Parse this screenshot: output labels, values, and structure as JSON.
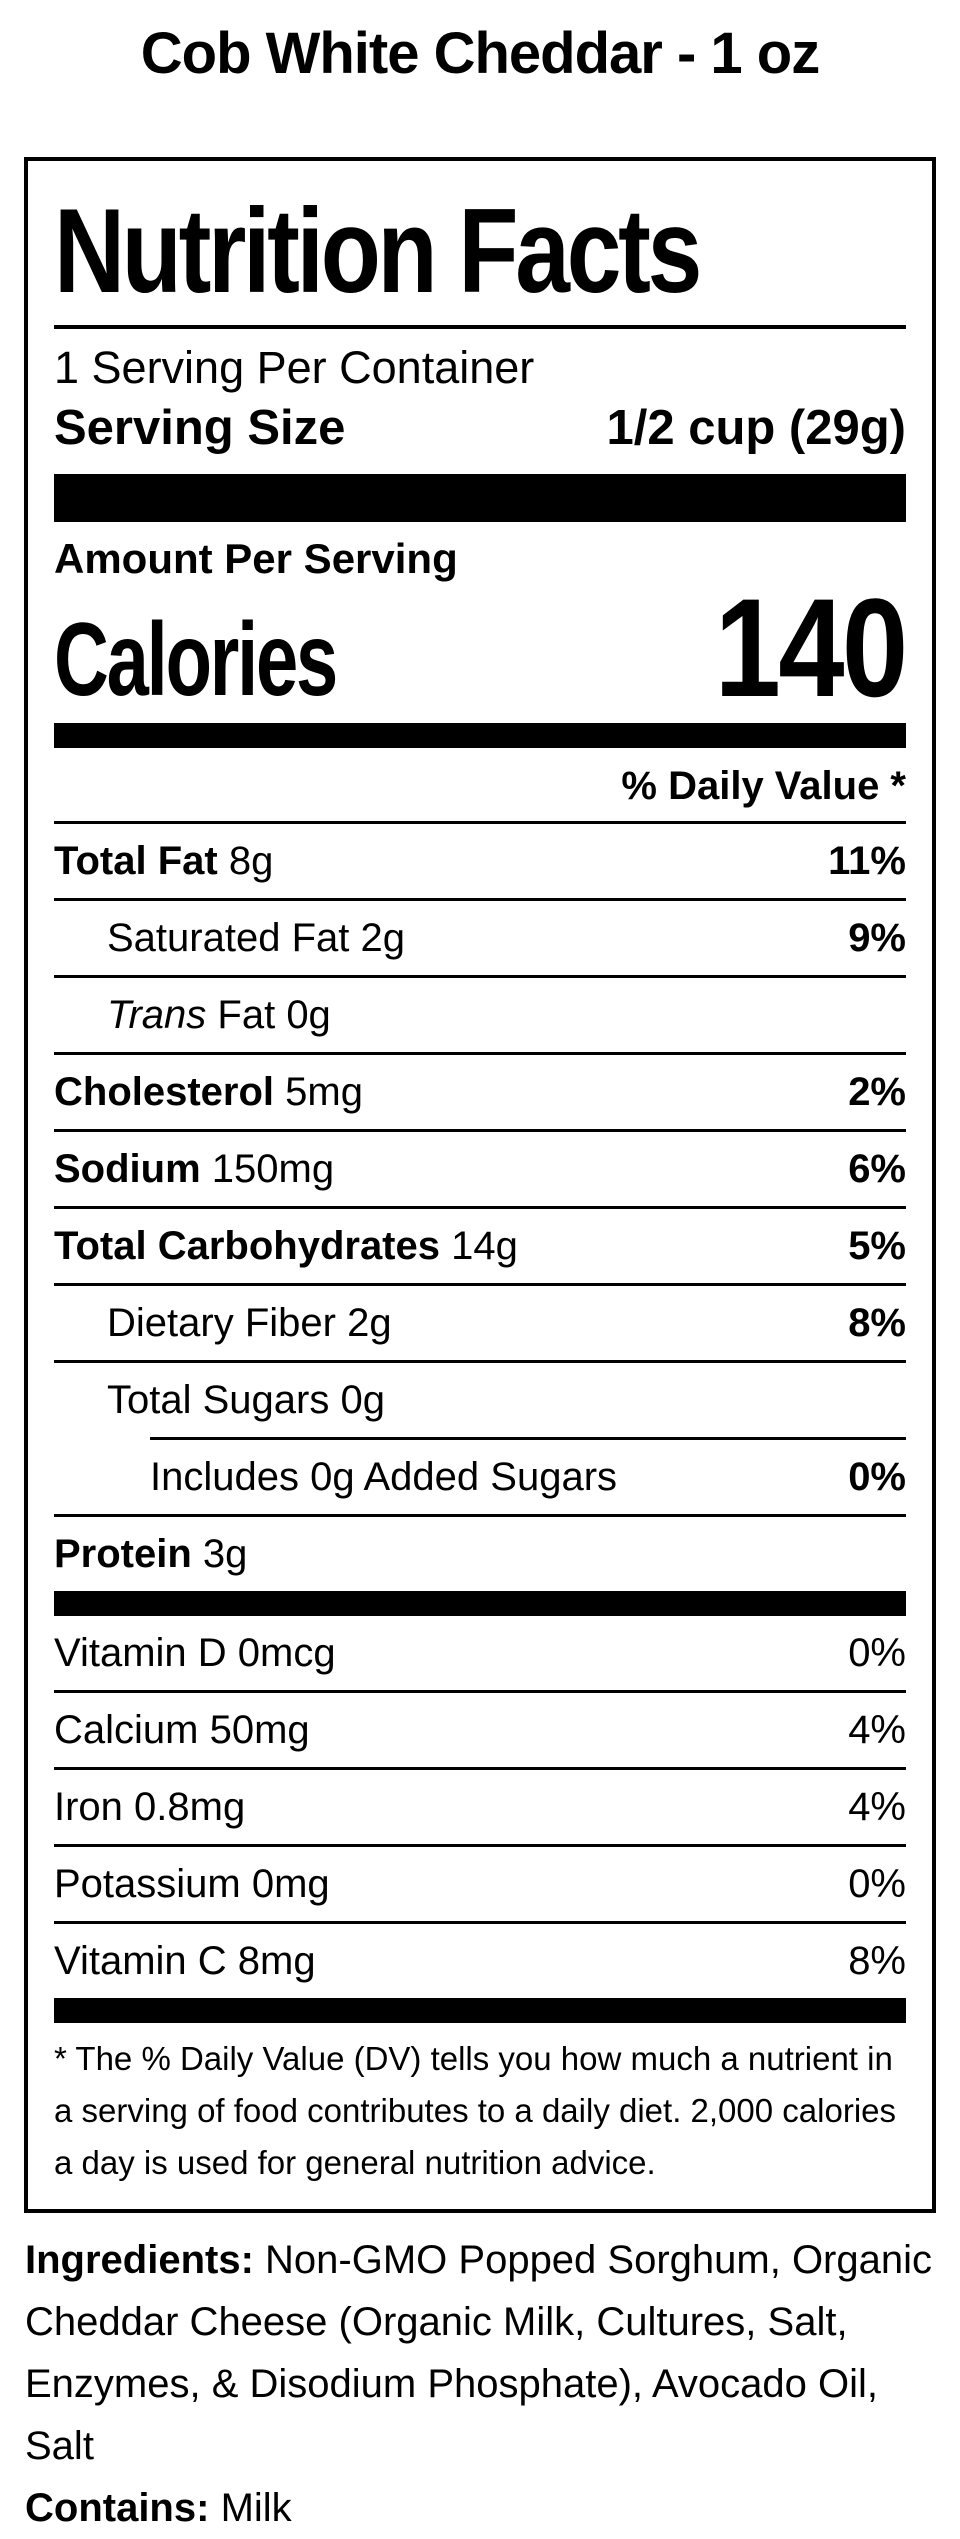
{
  "page_title": "Cob White Cheddar - 1 oz",
  "colors": {
    "ink": "#000000",
    "paper": "#ffffff"
  },
  "label": {
    "title": "Nutrition Facts",
    "servings_per_container": "1 Serving Per Container",
    "serving_size_label": "Serving Size",
    "serving_size_value": "1/2 cup (29g)",
    "amount_per_serving": "Amount Per Serving",
    "calories_label": "Calories",
    "calories_value": "140",
    "daily_value_header": "% Daily Value *",
    "nutrients": [
      {
        "label": "Total Fat",
        "amount": "8g",
        "percent": "11%"
      },
      {
        "label": "Saturated Fat",
        "amount": "2g",
        "percent": "9%"
      },
      {
        "label": "Trans",
        "amount": "Fat 0g",
        "percent": ""
      },
      {
        "label": "Cholesterol",
        "amount": "5mg",
        "percent": "2%"
      },
      {
        "label": "Sodium",
        "amount": "150mg",
        "percent": "6%"
      },
      {
        "label": "Total Carbohydrates",
        "amount": "14g",
        "percent": "5%"
      },
      {
        "label": "Dietary Fiber",
        "amount": "2g",
        "percent": "8%"
      },
      {
        "label": "Total Sugars",
        "amount": "0g",
        "percent": ""
      },
      {
        "label": "Includes 0g Added Sugars",
        "amount": "",
        "percent": "0%"
      },
      {
        "label": "Protein",
        "amount": "3g",
        "percent": ""
      }
    ],
    "vitamins": [
      {
        "text": "Vitamin D 0mcg",
        "percent": "0%"
      },
      {
        "text": "Calcium 50mg",
        "percent": "4%"
      },
      {
        "text": "Iron 0.8mg",
        "percent": "4%"
      },
      {
        "text": "Potassium 0mg",
        "percent": "0%"
      },
      {
        "text": "Vitamin C 8mg",
        "percent": "8%"
      }
    ],
    "footnote": "* The % Daily Value (DV) tells you how much a nutrient in a serving of food contributes to a daily diet. 2,000 calories a day is used for general nutrition advice."
  },
  "ingredients": {
    "label": "Ingredients:",
    "text": "Non-GMO Popped Sorghum, Organic Cheddar Cheese (Organic Milk, Cultures, Salt, Enzymes, & Disodium Phosphate), Avocado Oil, Salt",
    "contains_label": "Contains:",
    "contains_text": "Milk"
  }
}
